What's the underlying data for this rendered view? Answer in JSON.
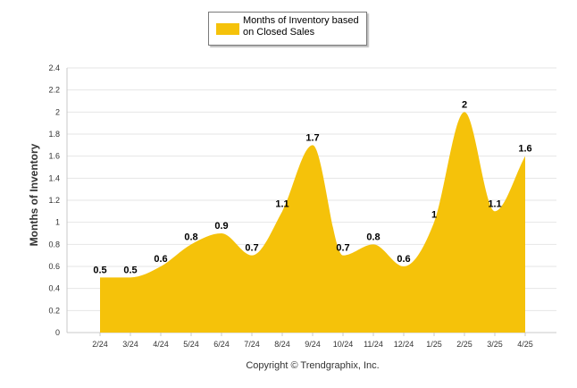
{
  "chart_data": {
    "type": "area",
    "categories": [
      "2/24",
      "3/24",
      "4/24",
      "5/24",
      "6/24",
      "7/24",
      "8/24",
      "9/24",
      "10/24",
      "11/24",
      "12/24",
      "1/25",
      "2/25",
      "3/25",
      "4/25"
    ],
    "series": [
      {
        "name": "Months of Inventory based on Closed Sales",
        "values": [
          0.5,
          0.5,
          0.6,
          0.8,
          0.9,
          0.7,
          1.1,
          1.7,
          0.7,
          0.8,
          0.6,
          1,
          2,
          1.1,
          1.6
        ],
        "labels": [
          "0.5",
          "0.5",
          "0.6",
          "0.8",
          "0.9",
          "0.7",
          "1.1",
          "1.7",
          "0.7",
          "0.8",
          "0.6",
          "1",
          "2",
          "1.1",
          "1.6"
        ],
        "color": "#f5c20a"
      }
    ],
    "ylabel": "Months of Inventory",
    "yticks": [
      "0",
      "0.2",
      "0.4",
      "0.6",
      "0.8",
      "1",
      "1.2",
      "1.4",
      "1.6",
      "1.8",
      "2",
      "2.2",
      "2.4"
    ],
    "ylim": [
      0,
      2.4
    ],
    "grid": true,
    "legend_position": "top-center"
  },
  "legend": {
    "label": "Months of Inventory based on Closed Sales"
  },
  "footer": {
    "copyright": "Copyright © Trendgraphix, Inc."
  }
}
